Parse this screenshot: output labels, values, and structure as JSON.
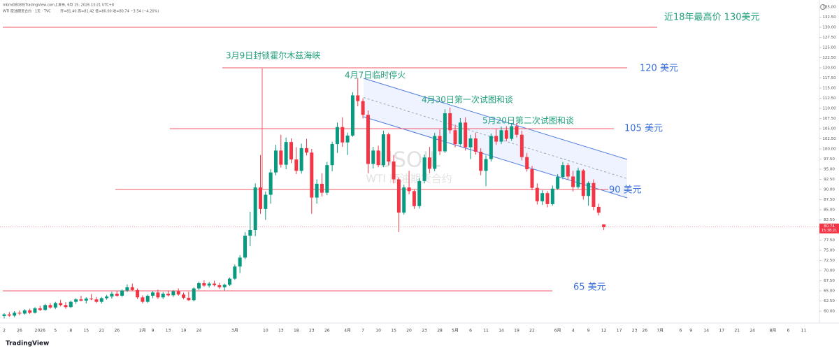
{
  "header": {
    "published": "mbmi0808在TradingView.com上发布, 6月 15, 2026 13:21 UTC+8",
    "symbol": "WTI 原油期货合约 · 1天 · TVC",
    "ohlc_legend": "开=81.40 高=81.42 低=80.00 收=80.74 −3.54 (−4.20%)"
  },
  "footer": {
    "brand": "TradingView"
  },
  "chart_data": {
    "type": "candlestick",
    "watermark": {
      "symbol": "USOIL",
      "name": "WTI 原油期货合约"
    },
    "up_color": "#089981",
    "down_color": "#f23645",
    "level_color": "#f05a68",
    "grid": false,
    "categories": [
      "2",
      null,
      null,
      "26",
      null,
      null,
      null,
      "2026",
      null,
      null,
      "5",
      null,
      null,
      "8",
      null,
      null,
      "15",
      null,
      null,
      "21",
      null,
      null,
      "26",
      null,
      null,
      null,
      null,
      "2月",
      null,
      "9",
      null,
      null,
      "13",
      null,
      null,
      "19",
      null,
      null,
      "24",
      null,
      null,
      null,
      null,
      null,
      null,
      "3月",
      null,
      null,
      null,
      null,
      null,
      "10",
      null,
      null,
      "13",
      null,
      null,
      "18",
      null,
      null,
      "23",
      null,
      null,
      "26",
      null,
      null,
      null,
      "4月",
      null,
      null,
      "7",
      null,
      null,
      "10",
      null,
      null,
      "15",
      null,
      null,
      "20",
      null,
      null,
      "23",
      null,
      null,
      "28",
      null,
      null,
      "5月",
      null,
      null,
      "6",
      null,
      null,
      "11",
      null,
      null,
      "14",
      null,
      null,
      "19",
      null,
      null,
      "22",
      null,
      null,
      null,
      null,
      "6月",
      null,
      null,
      "4",
      null,
      null,
      "9",
      null,
      null,
      "12",
      null,
      null,
      "17",
      null,
      null,
      "23",
      null,
      "26",
      null,
      null,
      "7月",
      null,
      null,
      null,
      "6",
      null,
      "9",
      null,
      null,
      "14",
      null,
      null,
      "17",
      null,
      null,
      "21",
      null,
      null,
      "24",
      null,
      null,
      null,
      "8月",
      null,
      null,
      "6",
      null,
      null,
      "11",
      null
    ],
    "open": [
      58.8,
      59.2,
      58.9,
      59.6,
      59.4,
      60.2,
      59.6,
      60.7,
      60.3,
      61.5,
      60.9,
      62.0,
      61.5,
      61.0,
      62.3,
      62.9,
      62.6,
      63.1,
      62.9,
      62.3,
      63.2,
      63.6,
      64.3,
      63.8,
      65.1,
      65.9,
      65.2,
      63.4,
      62.3,
      63.8,
      64.6,
      63.4,
      64.3,
      63.9,
      64.9,
      64.1,
      63.3,
      62.7,
      65.6,
      66.9,
      66.3,
      66.8,
      66.4,
      65.9,
      66.5,
      68.0,
      71.0,
      73.2,
      78.6,
      80.0,
      90.5,
      85.2,
      88.7,
      94.2,
      99.6,
      96.1,
      101.7,
      97.4,
      94.6,
      100.2,
      99.1,
      88.0,
      91.4,
      89.2,
      96.0,
      101.2,
      105.4,
      101.6,
      103.3,
      113.2,
      111.8,
      108.4,
      96.3,
      99.6,
      96.0,
      103.6,
      96.9,
      92.5,
      84.3,
      90.5,
      89.6,
      85.9,
      92.1,
      97.9,
      95.1,
      103.2,
      99.4,
      108.8,
      104.6,
      101.2,
      106.5,
      100.4,
      102.6,
      99.3,
      94.6,
      97.5,
      103.2,
      101.8,
      104.6,
      102.5,
      105.6,
      103.5,
      98.0,
      95.0,
      90.4,
      87.1,
      89.1,
      86.4,
      90.2,
      93.1,
      96.0,
      93.2,
      90.6,
      94.7,
      88.4,
      91.6,
      85.7,
      81.4,
      null,
      null,
      null,
      null,
      null,
      null,
      null,
      null,
      null,
      null,
      null,
      null,
      null,
      null,
      null,
      null,
      null,
      null,
      null,
      null,
      null,
      null,
      null,
      null,
      null,
      null,
      null,
      null,
      null,
      null,
      null,
      null,
      null,
      null,
      null,
      null,
      null,
      null,
      null,
      null
    ],
    "high": [
      59.5,
      59.8,
      60.0,
      60.2,
      60.5,
      60.6,
      61.0,
      61.3,
      61.8,
      62.0,
      62.3,
      62.8,
      62.2,
      62.6,
      63.2,
      63.8,
      63.4,
      64.2,
      63.5,
      63.5,
      64.0,
      64.8,
      65.0,
      65.4,
      66.6,
      66.8,
      65.6,
      63.9,
      64.1,
      65.0,
      65.3,
      64.7,
      65.1,
      65.2,
      65.6,
      64.6,
      64.8,
      65.9,
      67.3,
      67.6,
      67.2,
      67.5,
      67.0,
      66.8,
      68.3,
      71.5,
      73.8,
      79.5,
      84.5,
      91.5,
      98.5,
      89.5,
      95.0,
      101.0,
      103.5,
      102.8,
      102.6,
      100.4,
      101.3,
      102.5,
      100.0,
      92.5,
      94.0,
      96.8,
      101.8,
      106.5,
      107.8,
      104.0,
      114.0,
      117.5,
      112.5,
      109.5,
      100.5,
      100.8,
      104.5,
      104.0,
      98.5,
      93.0,
      91.2,
      94.6,
      90.0,
      92.8,
      98.6,
      100.5,
      104.0,
      104.8,
      109.8,
      110.2,
      106.0,
      107.6,
      107.8,
      103.5,
      104.0,
      100.2,
      98.4,
      103.8,
      104.9,
      105.5,
      105.6,
      106.3,
      106.4,
      104.5,
      99.0,
      95.8,
      91.5,
      89.8,
      89.6,
      91.0,
      93.8,
      96.8,
      96.5,
      94.6,
      95.4,
      95.0,
      92.0,
      92.5,
      86.5,
      81.42,
      null,
      null,
      null,
      null,
      null,
      null,
      null,
      null,
      null,
      null,
      null,
      null,
      null,
      null,
      null,
      null,
      null,
      null,
      null,
      null,
      null,
      null,
      null,
      null,
      null,
      null,
      null,
      null,
      null,
      null,
      null,
      null,
      null,
      null,
      null,
      null,
      null,
      null,
      null,
      null
    ],
    "low": [
      58.2,
      58.6,
      58.5,
      59.0,
      59.1,
      59.3,
      59.4,
      60.0,
      60.1,
      60.6,
      60.5,
      61.2,
      60.6,
      60.8,
      61.8,
      62.4,
      61.9,
      62.7,
      62.0,
      61.9,
      62.8,
      63.1,
      63.5,
      63.5,
      64.7,
      64.9,
      63.0,
      61.9,
      62.0,
      63.2,
      63.0,
      63.0,
      63.6,
      63.5,
      63.8,
      62.9,
      62.5,
      62.4,
      65.2,
      66.0,
      65.8,
      66.1,
      65.5,
      65.1,
      66.2,
      67.7,
      69.4,
      72.8,
      76.0,
      78.5,
      84.0,
      82.5,
      86.5,
      93.5,
      95.4,
      95.0,
      96.5,
      93.8,
      93.9,
      98.4,
      84.0,
      86.5,
      88.3,
      88.6,
      94.5,
      99.0,
      100.5,
      98.5,
      103.0,
      110.5,
      107.5,
      94.0,
      95.2,
      95.5,
      95.5,
      96.0,
      91.5,
      79.5,
      83.8,
      88.8,
      85.2,
      85.3,
      91.5,
      94.0,
      94.5,
      98.5,
      99.0,
      103.8,
      100.4,
      100.8,
      99.6,
      97.5,
      98.6,
      93.5,
      90.8,
      96.9,
      101.0,
      101.2,
      101.9,
      102.0,
      102.8,
      97.2,
      94.4,
      89.8,
      86.3,
      86.2,
      85.6,
      86.0,
      89.9,
      92.5,
      92.4,
      89.5,
      90.2,
      87.5,
      86.0,
      84.9,
      83.6,
      80.0,
      null,
      null,
      null,
      null,
      null,
      null,
      null,
      null,
      null,
      null,
      null,
      null,
      null,
      null,
      null,
      null,
      null,
      null,
      null,
      null,
      null,
      null,
      null,
      null,
      null,
      null,
      null,
      null,
      null,
      null,
      null,
      null,
      null,
      null,
      null,
      null,
      null,
      null,
      null,
      null
    ],
    "close": [
      59.2,
      58.9,
      59.6,
      59.4,
      60.2,
      59.6,
      60.7,
      60.3,
      61.5,
      60.9,
      62.0,
      61.5,
      61.0,
      62.3,
      62.9,
      62.6,
      63.1,
      62.9,
      62.3,
      63.2,
      63.6,
      64.3,
      63.8,
      65.1,
      65.9,
      65.2,
      63.4,
      62.3,
      63.8,
      64.6,
      63.4,
      64.3,
      63.9,
      64.9,
      64.1,
      63.3,
      62.7,
      65.6,
      66.9,
      66.3,
      66.8,
      66.4,
      65.9,
      66.5,
      68.0,
      71.0,
      73.2,
      78.6,
      80.0,
      90.5,
      85.2,
      88.7,
      94.2,
      99.6,
      96.1,
      101.7,
      97.4,
      94.6,
      100.2,
      99.1,
      88.0,
      91.4,
      89.2,
      96.0,
      101.2,
      105.4,
      101.6,
      103.3,
      113.2,
      111.8,
      108.4,
      96.3,
      99.6,
      96.0,
      103.6,
      96.9,
      92.5,
      84.3,
      90.5,
      89.6,
      85.9,
      92.1,
      97.9,
      95.1,
      103.2,
      99.4,
      108.8,
      104.6,
      101.2,
      106.5,
      100.4,
      102.6,
      99.3,
      94.6,
      97.5,
      103.2,
      101.8,
      104.6,
      102.5,
      105.6,
      103.5,
      98.0,
      95.0,
      90.4,
      87.1,
      89.1,
      86.4,
      90.2,
      93.1,
      96.0,
      93.2,
      90.6,
      94.7,
      88.4,
      91.6,
      85.7,
      84.28,
      80.74,
      null,
      null,
      null,
      null,
      null,
      null,
      null,
      null,
      null,
      null,
      null,
      null,
      null,
      null,
      null,
      null,
      null,
      null,
      null,
      null,
      null,
      null,
      null,
      null,
      null,
      null,
      null,
      null,
      null,
      null,
      null,
      null,
      null,
      null,
      null,
      null,
      null,
      null,
      null,
      null
    ],
    "last_price": {
      "value": 80.74,
      "label": "80.74",
      "countdown": "15:38:21"
    },
    "ylim": [
      57,
      136
    ],
    "yticks": [
      {
        "value": 60,
        "label": "60.00"
      },
      {
        "value": 62.5,
        "label": "62.50"
      },
      {
        "value": 65,
        "label": "65.00"
      },
      {
        "value": 67.5,
        "label": "67.50"
      },
      {
        "value": 70,
        "label": "70.00"
      },
      {
        "value": 72.5,
        "label": "72.50"
      },
      {
        "value": 75,
        "label": "75.00"
      },
      {
        "value": 77.5,
        "label": "77.50"
      },
      {
        "value": 80,
        "label": "80.00"
      },
      {
        "value": 82.5,
        "label": "82.50"
      },
      {
        "value": 85,
        "label": "85.00"
      },
      {
        "value": 87.5,
        "label": "87.50"
      },
      {
        "value": 90,
        "label": "90.00"
      },
      {
        "value": 92.5,
        "label": "92.50"
      },
      {
        "value": 95,
        "label": "95.00"
      },
      {
        "value": 97.5,
        "label": "97.50"
      },
      {
        "value": 100,
        "label": "100.00"
      },
      {
        "value": 102.5,
        "label": "102.50"
      },
      {
        "value": 105,
        "label": "105.00"
      },
      {
        "value": 107.5,
        "label": "107.50"
      },
      {
        "value": 110,
        "label": "110.00"
      },
      {
        "value": 112.5,
        "label": "112.50"
      },
      {
        "value": 115,
        "label": "115.00"
      },
      {
        "value": 117.5,
        "label": "117.50"
      },
      {
        "value": 120,
        "label": "120.00"
      },
      {
        "value": 122.5,
        "label": "122.50"
      },
      {
        "value": 125,
        "label": "125.00"
      },
      {
        "value": 127.5,
        "label": "127.50"
      },
      {
        "value": 130,
        "label": "130.00"
      },
      {
        "value": 132.5,
        "label": "132.50"
      },
      {
        "value": 135,
        "label": "135.00"
      }
    ],
    "levels": [
      {
        "value": 130,
        "label": "近18年最高价 130美元",
        "color": "#22a07c"
      },
      {
        "value": 120,
        "label": "120 美元",
        "color": "#3a6fd8"
      },
      {
        "value": 105,
        "label": "105 美元",
        "color": "#3a6fd8"
      },
      {
        "value": 90,
        "label": "90 美元",
        "color": "#3a6fd8"
      },
      {
        "value": 65,
        "label": "65 美元",
        "color": "#3a6fd8"
      }
    ],
    "events": [
      "3月9日封锁霍尔木兹海峡",
      "4月7日临时停火",
      "4月30日第一次试图和谈",
      "5月20日第二次试图和谈"
    ]
  }
}
